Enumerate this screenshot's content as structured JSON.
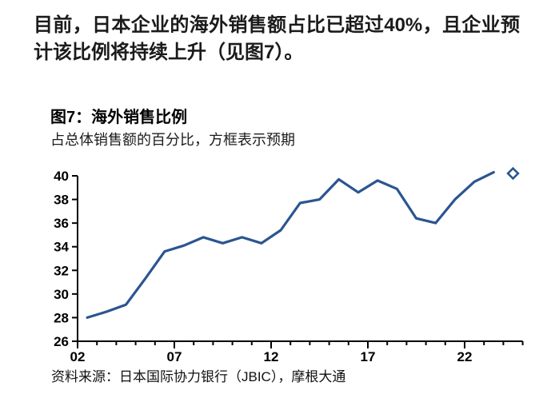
{
  "paragraph": {
    "text": "目前，日本企业的海外销售额占比已超过40%，且企业预计该比例将持续上升（见图7）。"
  },
  "figure": {
    "title": "图7：海外销售比例",
    "subtitle": "占总体销售额的百分比，方框表示预期",
    "source": "资料来源：日本国际协力银行（JBIC），摩根大通"
  },
  "chart_data": {
    "type": "line",
    "title": "图7：海外销售比例",
    "subtitle": "占总体销售额的百分比，方框表示预期",
    "source": "资料来源：日本国际协力银行（JBIC），摩根大通",
    "x": [
      2002,
      2003,
      2004,
      2005,
      2006,
      2007,
      2008,
      2009,
      2010,
      2011,
      2012,
      2013,
      2014,
      2015,
      2016,
      2017,
      2018,
      2019,
      2020,
      2021,
      2022,
      2023
    ],
    "series": [
      {
        "name": "海外销售比例",
        "color": "#2b5591",
        "values": [
          28.0,
          28.5,
          29.1,
          31.3,
          33.6,
          34.1,
          34.8,
          34.3,
          34.8,
          34.3,
          35.4,
          37.7,
          38.0,
          39.7,
          38.6,
          39.6,
          38.9,
          36.4,
          36.0,
          38.0,
          39.5,
          40.3
        ]
      }
    ],
    "forecast": {
      "x": 2024,
      "value": 40.2,
      "marker": "hollow-diamond"
    },
    "ylim": [
      26,
      40
    ],
    "yticks": [
      26,
      28,
      30,
      32,
      34,
      36,
      38,
      40
    ],
    "xticks": [
      {
        "x": 2002,
        "label": "02"
      },
      {
        "x": 2007,
        "label": "07"
      },
      {
        "x": 2012,
        "label": "12"
      },
      {
        "x": 2017,
        "label": "17"
      },
      {
        "x": 2022,
        "label": "22"
      }
    ],
    "grid": false,
    "legend": "none",
    "axis_color": "#000000"
  }
}
